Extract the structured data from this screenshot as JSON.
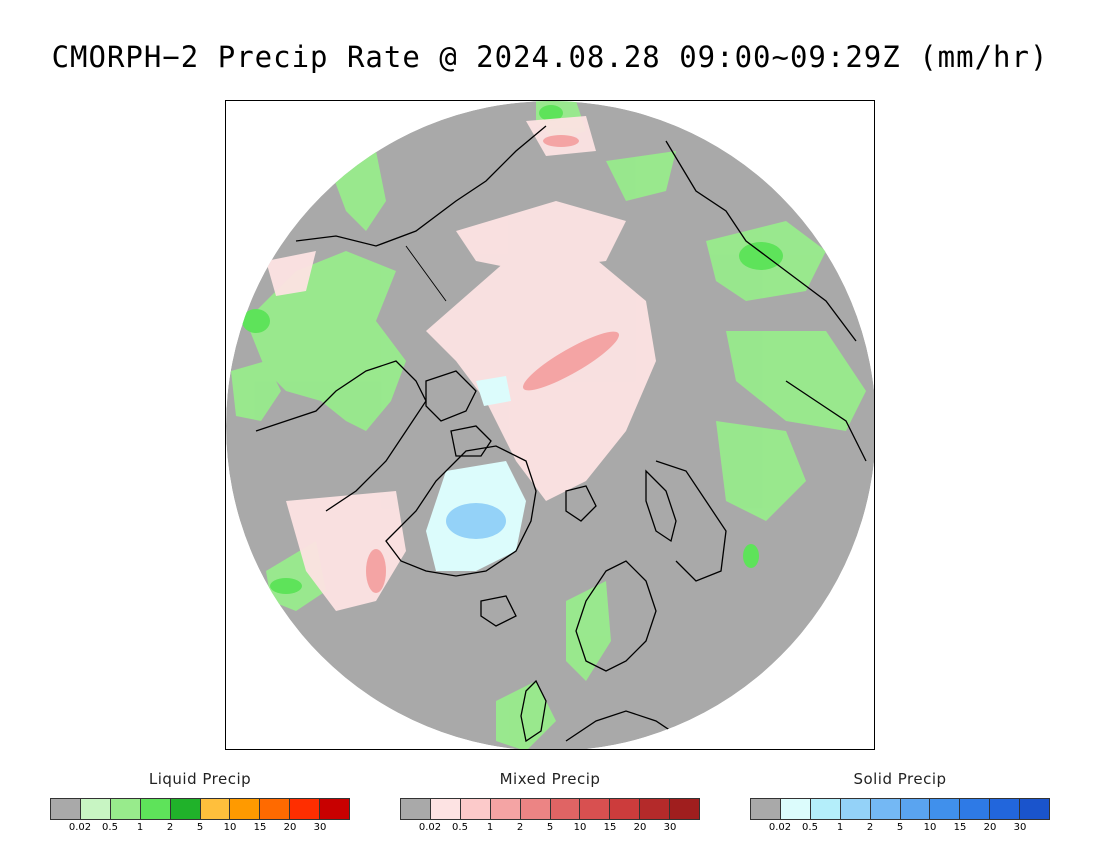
{
  "title": "CMORPH−2 Precip Rate @ 2024.08.28 09:00~09:29Z (mm/hr)",
  "map": {
    "background_color": "#a9a9a9",
    "coastline_color": "#000000"
  },
  "legends": [
    {
      "key": "liquid",
      "title": "Liquid Precip",
      "colors": [
        "#a9a9a9",
        "#c8f5c3",
        "#98eb8c",
        "#5ee35a",
        "#20b22a",
        "#ffbf3c",
        "#ff9a00",
        "#ff6a00",
        "#ff2e00",
        "#c80000"
      ],
      "ticks": [
        "0.02",
        "0.5",
        "1",
        "2",
        "5",
        "10",
        "15",
        "20",
        "30"
      ]
    },
    {
      "key": "mixed",
      "title": "Mixed Precip",
      "colors": [
        "#a9a9a9",
        "#fde3e3",
        "#fccaca",
        "#f4a4a4",
        "#ec8484",
        "#e06464",
        "#d85050",
        "#cc3c3c",
        "#b42a2a",
        "#a01e1e"
      ],
      "ticks": [
        "0.02",
        "0.5",
        "1",
        "2",
        "5",
        "10",
        "15",
        "20",
        "30"
      ]
    },
    {
      "key": "solid",
      "title": "Solid Precip",
      "colors": [
        "#a9a9a9",
        "#dcfcfc",
        "#b4eefa",
        "#94d2f8",
        "#74b8f4",
        "#5aa4f0",
        "#4090ec",
        "#2e7ae6",
        "#2266dc",
        "#1a54cc"
      ],
      "ticks": [
        "0.02",
        "0.5",
        "1",
        "2",
        "5",
        "10",
        "15",
        "20",
        "30"
      ]
    }
  ]
}
